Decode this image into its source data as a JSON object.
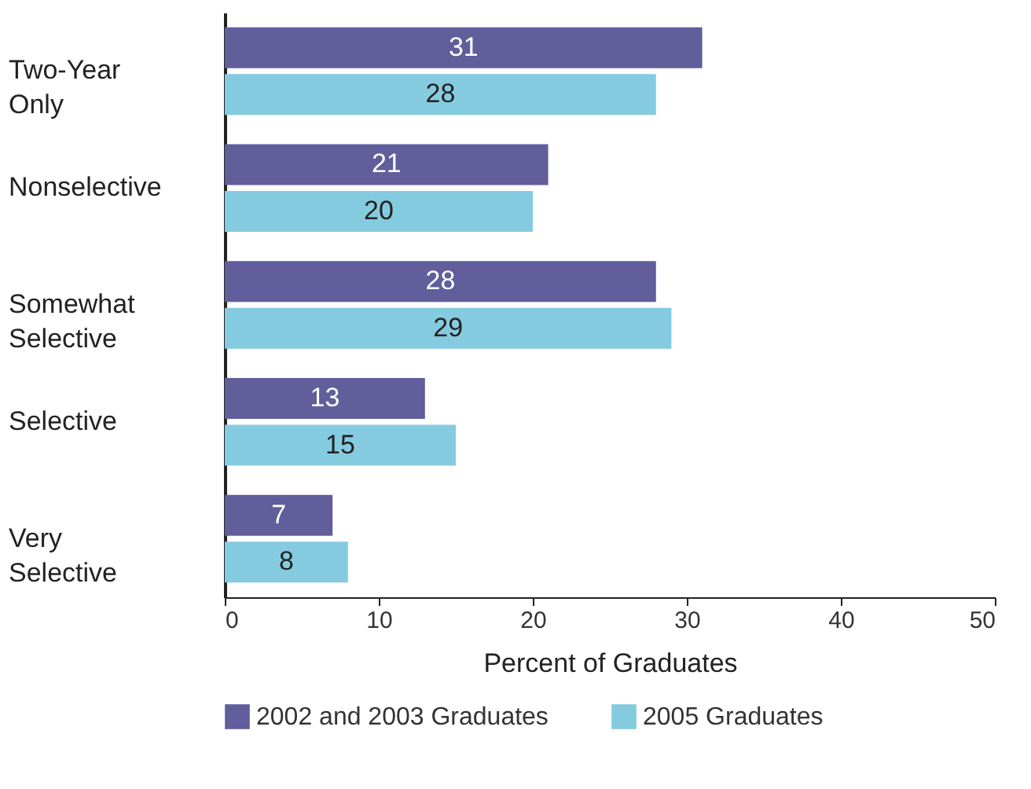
{
  "chart_data": {
    "type": "bar",
    "orientation": "horizontal",
    "xlabel": "Percent of Graduates",
    "categories": [
      "Two-Year Only",
      "Nonselective",
      "Somewhat Selective",
      "Selective",
      "Very Selective"
    ],
    "series": [
      {
        "name": "2002 and 2003 Graduates",
        "color": "#615e9b",
        "values": [
          31,
          21,
          28,
          13,
          7
        ]
      },
      {
        "name": "2005 Graduates",
        "color": "#85cbe0",
        "values": [
          28,
          20,
          29,
          15,
          8
        ]
      }
    ],
    "xlim": [
      0,
      50
    ],
    "xticks": [
      0,
      10,
      20,
      30,
      40,
      50
    ],
    "grid": false,
    "legend": "bottom",
    "data_labels": true
  }
}
